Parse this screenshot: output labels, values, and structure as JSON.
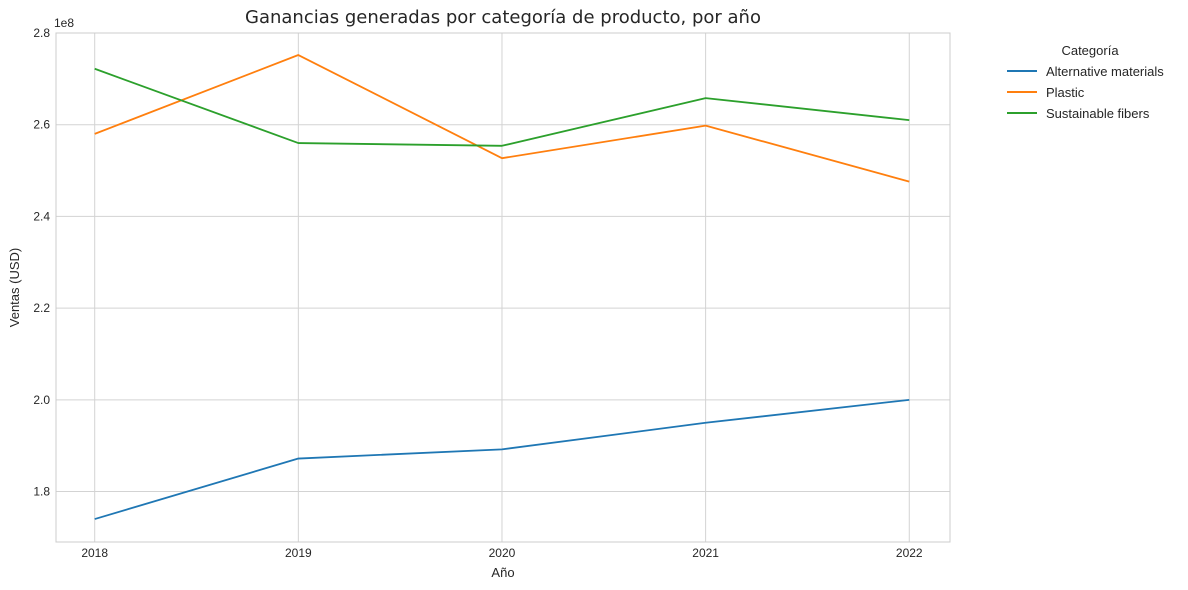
{
  "chart_data": {
    "type": "line",
    "title": "Ganancias generadas por categoría de producto, por año",
    "xlabel": "Año",
    "ylabel": "Ventas (USD)",
    "y_offset_label": "1e8",
    "x": [
      2018,
      2019,
      2020,
      2021,
      2022
    ],
    "x_tick_labels": [
      "2018",
      "2019",
      "2020",
      "2021",
      "2022"
    ],
    "y_ticks": [
      1.8,
      2.0,
      2.2,
      2.4,
      2.6,
      2.8
    ],
    "y_tick_labels": [
      "1.8",
      "2.0",
      "2.2",
      "2.4",
      "2.6",
      "2.8"
    ],
    "ylim": [
      1.69,
      2.8
    ],
    "y_scale_note": "values in units of 1e8 USD",
    "grid": true,
    "legend": {
      "title": "Categoría",
      "placement": "outside-right"
    },
    "series": [
      {
        "name": "Alternative materials",
        "color": "#1f77b4",
        "values": [
          1.74,
          1.872,
          1.892,
          1.95,
          2.0
        ]
      },
      {
        "name": "Plastic",
        "color": "#ff7f0e",
        "values": [
          2.58,
          2.752,
          2.527,
          2.598,
          2.476
        ]
      },
      {
        "name": "Sustainable fibers",
        "color": "#2ca02c",
        "values": [
          2.722,
          2.56,
          2.554,
          2.658,
          2.61
        ]
      }
    ]
  }
}
